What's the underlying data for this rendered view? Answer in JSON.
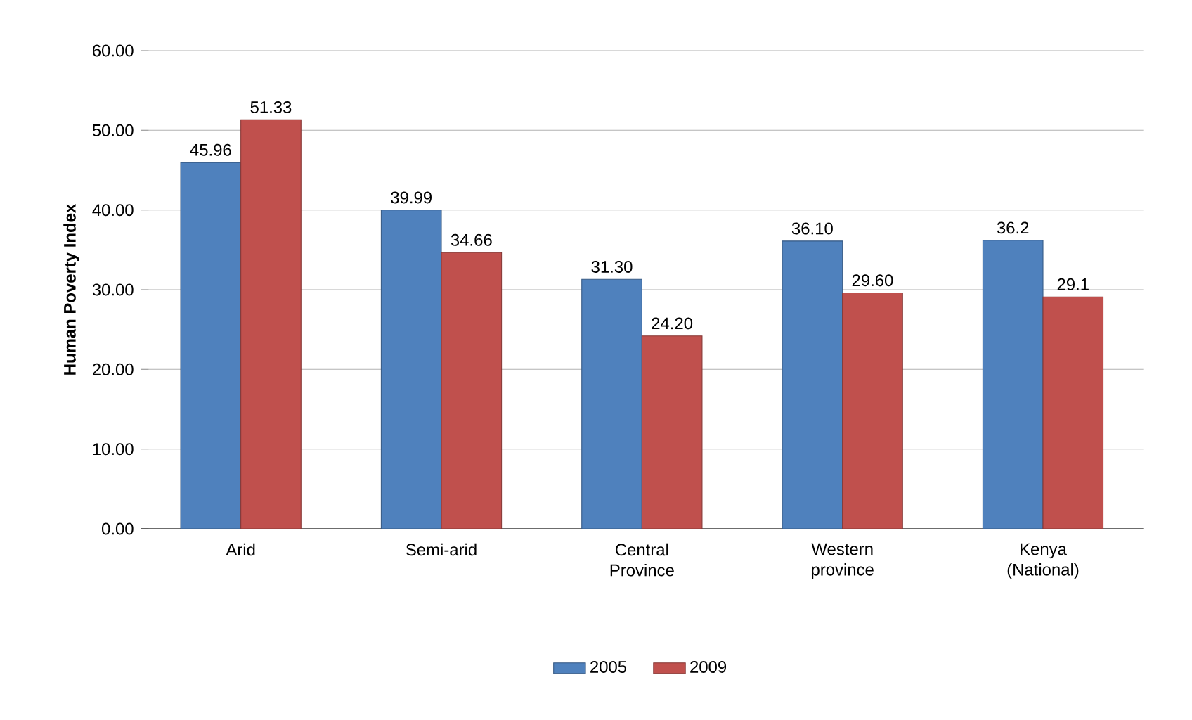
{
  "chart_data": {
    "type": "bar",
    "ylabel": "Human Poverty Index",
    "categories": [
      "Arid",
      "Semi-arid",
      "Central Province",
      "Western province",
      "Kenya (National)"
    ],
    "series": [
      {
        "name": "2005",
        "color": "#4f81bd",
        "values": [
          45.96,
          39.99,
          31.3,
          36.1,
          36.2
        ],
        "value_labels": [
          "45.96",
          "39.99",
          "31.30",
          "36.10",
          "36.2"
        ]
      },
      {
        "name": "2009",
        "color": "#c0504d",
        "values": [
          51.33,
          34.66,
          24.2,
          29.6,
          29.1
        ],
        "value_labels": [
          "51.33",
          "34.66",
          "24.20",
          "29.60",
          "29.1"
        ]
      }
    ],
    "ylim": [
      0,
      60
    ],
    "yticks": [
      {
        "value": 0,
        "label": "0.00"
      },
      {
        "value": 10,
        "label": "10.00"
      },
      {
        "value": 20,
        "label": "20.00"
      },
      {
        "value": 30,
        "label": "30.00"
      },
      {
        "value": 40,
        "label": "40.00"
      },
      {
        "value": 50,
        "label": "50.00"
      },
      {
        "value": 60,
        "label": "60.00"
      }
    ],
    "grid": "y",
    "legend": "bottom"
  }
}
